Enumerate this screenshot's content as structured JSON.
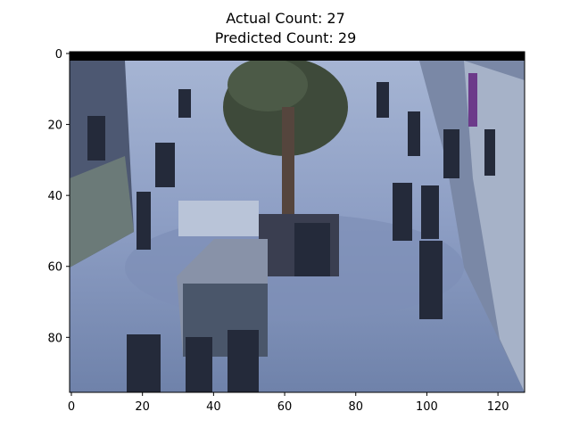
{
  "figure": {
    "title_line_1": "Actual Count: 27",
    "title_line_2": "Predicted Count: 29"
  },
  "chart_data": {
    "type": "image",
    "title": "Actual Count: 27\nPredicted Count: 29",
    "actual_count": 27,
    "predicted_count": 29,
    "xlabel": "",
    "ylabel": "",
    "xlim": [
      -0.5,
      127.5
    ],
    "ylim": [
      95.5,
      -0.5
    ],
    "x_ticks": [
      0,
      20,
      40,
      60,
      80,
      100,
      120
    ],
    "y_ticks": [
      0,
      20,
      40,
      60,
      80
    ],
    "image_description_colors": {
      "floor": "#8a9cc0",
      "dark_band": "#000000",
      "shadow": "#2a3348",
      "foliage": "#3e4a3a"
    }
  }
}
